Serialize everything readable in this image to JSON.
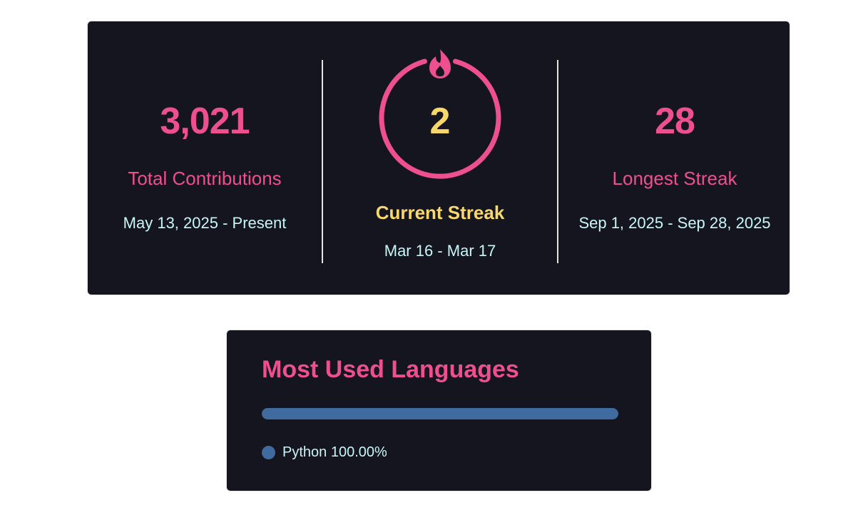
{
  "colors": {
    "background": "#151520",
    "border": "#e4e2e2",
    "accent_pink": "#ee4f8d",
    "accent_yellow": "#f8d86a",
    "text_cyan": "#c8f6f6",
    "python_blue": "#3f6b9e"
  },
  "streak": {
    "total": {
      "value": "3,021",
      "label": "Total Contributions",
      "range": "May 13, 2025 - Present"
    },
    "current": {
      "value": "2",
      "label": "Current Streak",
      "range": "Mar 16 - Mar 17",
      "icon": "fire-icon"
    },
    "longest": {
      "value": "28",
      "label": "Longest Streak",
      "range": "Sep 1, 2025 - Sep 28, 2025"
    }
  },
  "languages": {
    "title": "Most Used Languages",
    "items": [
      {
        "name": "Python",
        "percent": 100.0,
        "percent_label": "100.00%",
        "color": "#3f6b9e"
      }
    ]
  }
}
